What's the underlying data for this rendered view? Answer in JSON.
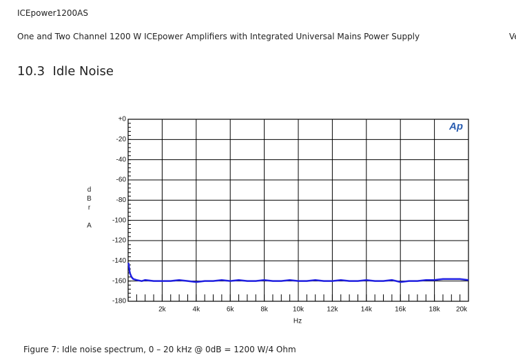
{
  "header": {
    "title": "ICEpower1200AS",
    "subtitle": "One and Two Channel 1200 W ICEpower Amplifiers with Integrated Universal Mains Power Supply",
    "version": "Ve"
  },
  "section": {
    "heading": "10.3  Idle Noise"
  },
  "chart_data": {
    "type": "line",
    "logo": "Ap",
    "xlabel": "Hz",
    "ylabel": "dBr A",
    "xlim": [
      0,
      20000
    ],
    "xticks": [
      {
        "value": 2000,
        "label": "2k"
      },
      {
        "value": 4000,
        "label": "4k"
      },
      {
        "value": 6000,
        "label": "6k"
      },
      {
        "value": 8000,
        "label": "8k"
      },
      {
        "value": 10000,
        "label": "10k"
      },
      {
        "value": 12000,
        "label": "12k"
      },
      {
        "value": 14000,
        "label": "14k"
      },
      {
        "value": 16000,
        "label": "16k"
      },
      {
        "value": 18000,
        "label": "18k"
      },
      {
        "value": 20000,
        "label": "20k"
      }
    ],
    "ylim": [
      -180,
      0
    ],
    "yticks": [
      {
        "value": 0,
        "label": "+0"
      },
      -20,
      -40,
      -60,
      -80,
      -100,
      -120,
      -140,
      -160,
      -180
    ],
    "grid": true,
    "x": [
      20,
      100,
      200,
      300,
      500,
      800,
      1000,
      1500,
      2000,
      2500,
      3000,
      3500,
      4000,
      4500,
      5000,
      5500,
      6000,
      6500,
      7000,
      7500,
      8000,
      8500,
      9000,
      9500,
      10000,
      10500,
      11000,
      11500,
      12000,
      12500,
      13000,
      13500,
      14000,
      14500,
      15000,
      15500,
      16000,
      16500,
      17000,
      17500,
      18000,
      18500,
      19000,
      19500,
      20000
    ],
    "series": [
      {
        "color": "#1f1fe0",
        "values": [
          -142,
          -152,
          -156,
          -158,
          -159,
          -160,
          -159,
          -160,
          -160,
          -160,
          -159,
          -160,
          -161,
          -160,
          -160,
          -159,
          -160,
          -159,
          -160,
          -160,
          -159,
          -160,
          -160,
          -159,
          -160,
          -160,
          -159,
          -160,
          -160,
          -159,
          -160,
          -160,
          -159,
          -160,
          -160,
          -159,
          -161,
          -160,
          -160,
          -159,
          -159,
          -158,
          -158,
          -158,
          -159
        ]
      }
    ]
  },
  "caption": "Figure 7: Idle noise spectrum, 0 – 20 kHz @ 0dB = 1200 W/4 Ohm"
}
